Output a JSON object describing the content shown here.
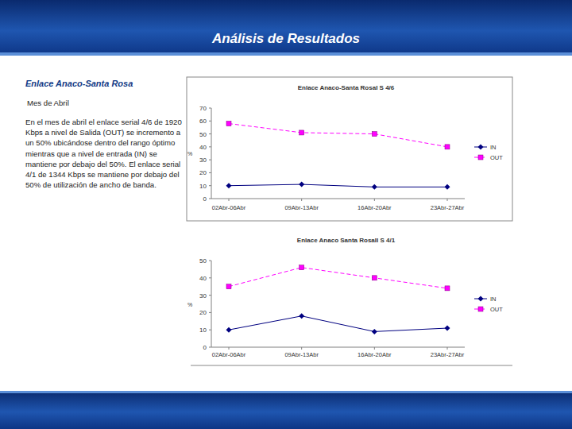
{
  "slide": {
    "title": "Análisis de Resultados",
    "heading": "Enlace Anaco-Santa Rosa",
    "subheading": "Mes de Abril",
    "body": "En el mes de abril el enlace serial 4/6 de 1920 Kbps a nivel de Salida (OUT) se incremento a un 50% ubicándose dentro del rango óptimo mientras que a nivel de entrada (IN) se mantiene por debajo del 50%. El enlace serial 4/1 de 1344 Kbps se mantiene por debajo del 50% de utilización de ancho de banda."
  },
  "chart_data": [
    {
      "type": "line",
      "title": "Enlace Anaco-Santa RosaI S 4/6",
      "y_label": "%",
      "categories": [
        "02Abr-06Abr",
        "09Abr-13Abr",
        "16Abr-20Abr",
        "23Abr-27Abr"
      ],
      "series": [
        {
          "name": "IN",
          "color": "#000080",
          "marker": "diamond",
          "line_style": "solid",
          "values": [
            10,
            11,
            9,
            9
          ]
        },
        {
          "name": "OUT",
          "color": "#ff00ff",
          "marker": "square",
          "line_style": "dashed",
          "values": [
            58,
            51,
            50,
            40
          ]
        }
      ],
      "ylim": [
        0,
        70
      ],
      "yticks": [
        0,
        10,
        20,
        30,
        40,
        50,
        60,
        70
      ],
      "grid": false,
      "legend": "right"
    },
    {
      "type": "line",
      "title": "Enlace Anaco Santa RosaII S 4/1",
      "y_label": "%",
      "categories": [
        "02Abr-06Abr",
        "09Abr-13Abr",
        "16Abr-20Abr",
        "23Abr-27Abr"
      ],
      "series": [
        {
          "name": "IN",
          "color": "#000080",
          "marker": "diamond",
          "line_style": "solid",
          "values": [
            10,
            18,
            9,
            11
          ]
        },
        {
          "name": "OUT",
          "color": "#ff00ff",
          "marker": "square",
          "line_style": "dashed",
          "values": [
            35,
            46,
            40,
            34
          ]
        }
      ],
      "ylim": [
        0,
        50
      ],
      "yticks": [
        0,
        10,
        20,
        30,
        40,
        50
      ],
      "grid": false,
      "legend": "right"
    }
  ]
}
